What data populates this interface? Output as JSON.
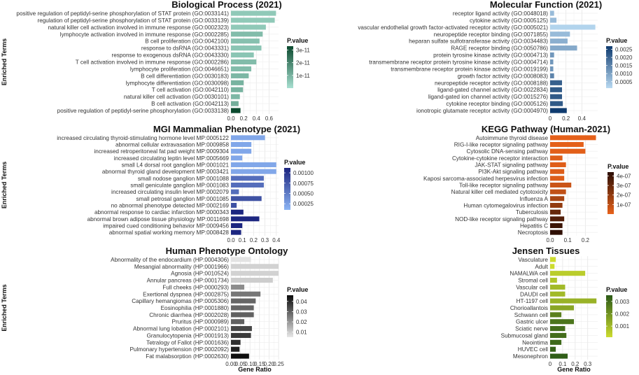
{
  "figure": {
    "shared_ylabel": "Enriched Terms",
    "shared_xlabel": "Gene Ratio",
    "legend_title": "P.value"
  },
  "chart_data": [
    {
      "type": "bar",
      "title": "Biological Process (2021)",
      "xlabel": "",
      "ylabel": "Enriched Terms",
      "xlim": [
        0,
        0.75
      ],
      "xticks": [
        0.0,
        0.2,
        0.4,
        0.6
      ],
      "xtick_labels": [
        "0.0",
        "0.2",
        "0.4",
        "0.6"
      ],
      "categories": [
        "positive regulation of peptidyl-serine phosphorylation of STAT protein (GO:0033141)",
        "regulation of peptidyl-serine phosphorylation of STAT protein (GO:0033139)",
        "natural killer cell activation involved in immune response (GO:0002323)",
        "lymphocyte activation involved in immune response (GO:0002285)",
        "B cell proliferation (GO:0042100)",
        "response to dsRNA (GO:0043331)",
        "response to exogenous dsRNA (GO:0043330)",
        "T cell activation involved in immune response (GO:0002286)",
        "lymphocyte proliferation (GO:0046651)",
        "B cell differentiation (GO:0030183)",
        "lymphocyte differentiation (GO:0030098)",
        "T cell activation (GO:0042110)",
        "natural killer cell activation (GO:0030101)",
        "B cell activation (GO:0042113)",
        "positive regulation of peptidyl-serine phosphorylation (GO:0033138)"
      ],
      "values": [
        0.71,
        0.69,
        0.55,
        0.5,
        0.45,
        0.48,
        0.36,
        0.4,
        0.32,
        0.28,
        0.2,
        0.19,
        0.14,
        0.12,
        0.15
      ],
      "pvalues": [
        5e-12,
        5e-12,
        5e-12,
        8e-12,
        7e-12,
        6e-12,
        6e-12,
        8e-12,
        8e-12,
        9e-12,
        1e-11,
        1e-11,
        9e-12,
        1.1e-11,
        3.3e-11
      ],
      "legend": {
        "title": "P.value",
        "min": 0,
        "max": 3.3e-11,
        "colors": [
          "#a8e0d1",
          "#0b4a2f"
        ],
        "ticks": [
          3e-11,
          2e-11,
          1e-11
        ],
        "tick_labels": [
          "3e-11",
          "2e-11",
          "1e-11"
        ]
      }
    },
    {
      "type": "bar",
      "title": "Molecular Function (2021)",
      "xlabel": "",
      "ylabel": "",
      "xlim": [
        0,
        0.6
      ],
      "xticks": [
        0.0,
        0.2,
        0.4
      ],
      "xtick_labels": [
        "0",
        "0.2",
        "0.4"
      ],
      "categories": [
        "receptor ligand activity (GO:0048018)",
        "cytokine activity (GO:0005125)",
        "vascular endothelial growth factor-activated receptor activity (GO:0005021)",
        "neuropeptide receptor binding (GO:0071855)",
        "heparan sulfate sulfotransferase activity (GO:0034483)",
        "RAGE receptor binding (GO:0050786)",
        "protein tyrosine kinase activity (GO:0004713)",
        "transmembrane receptor protein tyrosine kinase activity (GO:0004714)",
        "transmembrane receptor protein kinase activity (GO:0019199)",
        "growth factor activity (GO:0008083)",
        "neuropeptide receptor activity (GO:0008188)",
        "ligand-gated channel activity (GO:0022834)",
        "ligand-gated ion channel activity (GO:0015276)",
        "cytokine receptor binding (GO:0005126)",
        "ionotropic glutamate receptor activity (GO:0004970)"
      ],
      "values": [
        0.05,
        0.08,
        0.57,
        0.25,
        0.22,
        0.34,
        0.05,
        0.04,
        0.04,
        0.05,
        0.15,
        0.15,
        0.15,
        0.16,
        0.21
      ],
      "pvalues": [
        0.0006,
        0.0006,
        0.0002,
        0.0006,
        0.0008,
        0.0009,
        0.0012,
        0.0012,
        0.0012,
        0.0015,
        0.0021,
        0.0022,
        0.0022,
        0.0022,
        0.0027
      ],
      "legend": {
        "title": "P.value",
        "min": 0.0001,
        "max": 0.0027,
        "colors": [
          "#b9daf2",
          "#0f3b6f"
        ],
        "ticks": [
          0.0025,
          0.002,
          0.0015,
          0.001,
          0.0005
        ],
        "tick_labels": [
          "0.0025",
          "0.0020",
          "0.0015",
          "0.0010",
          "0.0005"
        ]
      }
    },
    {
      "type": "bar",
      "title": "MGI Mammalian Phenotype (2021)",
      "xlabel": "",
      "ylabel": "Enriched Terms",
      "xlim": [
        0,
        0.42
      ],
      "xticks": [
        0.0,
        0.1,
        0.2,
        0.3,
        0.4
      ],
      "xtick_labels": [
        "0.0",
        "0.1",
        "0.2",
        "0.3",
        "0.4"
      ],
      "categories": [
        "increased circulating thyroid-stimulating hormone level MP:0005122",
        "abnormal cellular extravasation MP:0009858",
        "increased retroperitoneal fat pad weight MP:0009304",
        "increased circulating leptin level MP:0005669",
        "small L4 dorsal root ganglion MP:0001021",
        "abnormal thyroid gland development MP:0003421",
        "small nodose ganglion MP:0001088",
        "small geniculate ganglion MP:0001083",
        "increased circulating insulin level MP:0002079",
        "small petrosal ganglion MP:0001085",
        "no abnormal phenotype detected MP:0002169",
        "abnormal response to cardiac infarction MP:0000343",
        "abnormal brown adipose tissue physiology MP:0011698",
        "impaired cued conditioning behavior MP:0009456",
        "abnormal spatial working memory MP:0008428"
      ],
      "values": [
        0.3,
        0.18,
        0.18,
        0.1,
        0.4,
        0.4,
        0.29,
        0.29,
        0.07,
        0.27,
        0.05,
        0.11,
        0.25,
        0.1,
        0.09
      ],
      "pvalues": [
        0.0002,
        0.0002,
        0.0002,
        0.0002,
        0.0002,
        0.0002,
        0.0006,
        0.0006,
        0.0006,
        0.0008,
        0.0008,
        0.0011,
        0.0011,
        0.0011,
        0.0011
      ],
      "legend": {
        "title": "P.value",
        "min": 0.0001,
        "max": 0.00112,
        "colors": [
          "#8cb5f5",
          "#1a237e"
        ],
        "ticks": [
          0.001,
          0.00075,
          0.0005,
          0.00025
        ],
        "tick_labels": [
          "0.00100",
          "0.00075",
          "0.00050",
          "0.00025"
        ]
      }
    },
    {
      "type": "bar",
      "title": "KEGG Pathway (Human-2021)",
      "xlabel": "",
      "ylabel": "",
      "xlim": [
        0,
        0.27
      ],
      "xticks": [
        0.0,
        0.1,
        0.2
      ],
      "xtick_labels": [
        "0.0",
        "0.1",
        "0.2"
      ],
      "categories": [
        "Autoimmune thyroid disease",
        "RIG-I-like receptor signaling pathway",
        "Cytosolic DNA-sensing pathway",
        "Cytokine-cytokine receptor interaction",
        "JAK-STAT signaling pathway",
        "PI3K-Akt signaling pathway",
        "Kaposi sarcoma-associated herpesvirus infection",
        "Toll-like receptor signaling pathway",
        "Natural killer cell mediated cytotoxicity",
        "Influenza A",
        "Human cytomegalovirus infection",
        "Tuberculosis",
        "NOD-like receptor signaling pathway",
        "Hepatitis C",
        "Necroptosis"
      ],
      "values": [
        0.26,
        0.19,
        0.2,
        0.07,
        0.09,
        0.08,
        0.08,
        0.12,
        0.09,
        0.08,
        0.07,
        0.06,
        0.08,
        0.07,
        0.07
      ],
      "pvalues": [
        8e-09,
        1e-08,
        1.5e-08,
        2e-08,
        2e-08,
        2.5e-08,
        2.5e-08,
        7e-08,
        9e-08,
        1.5e-07,
        2e-07,
        3e-07,
        3.5e-07,
        4e-07,
        4.3e-07
      ],
      "legend": {
        "title": "P.value",
        "min": 0,
        "max": 4.4e-07,
        "colors": [
          "#e8621a",
          "#2b0d04"
        ],
        "ticks": [
          4e-07,
          3e-07,
          2e-07,
          1e-07
        ],
        "tick_labels": [
          "4e-07",
          "3e-07",
          "2e-07",
          "1e-07"
        ]
      }
    },
    {
      "type": "bar",
      "title": "Human Phenotype Ontology",
      "xlabel": "Gene Ratio",
      "ylabel": "Enriched Terms",
      "xlim": [
        0,
        0.25
      ],
      "xticks": [
        0.0,
        0.05,
        0.1,
        0.15,
        0.2,
        0.25
      ],
      "xtick_labels": [
        "0.00",
        "0.05",
        "0.10",
        "0.15",
        "0.20",
        "0.25"
      ],
      "categories": [
        "Abnormality of the endocardium (HP:0004306)",
        "Mesangial abnormality (HP:0001966)",
        "Agnosia (HP:0010524)",
        "Annular pancreas (HP:0001734)",
        "Full cheeks (HP:0000293)",
        "Exertional dyspnea (HP:0002875)",
        "Capillary hemangiomas (HP:0005306)",
        "Eosinophilia (HP:0001880)",
        "Chronic diarrhea (HP:0002028)",
        "Pruritus (HP:0000989)",
        "Abnormal lung lobation (HP:0002101)",
        "Granulocytopenia (HP:0001913)",
        "Tetralogy of Fallot (HP:0001636)",
        "Pulmonary hypertension (HP:0002092)",
        "Fat malabsorption (HP:0002630)"
      ],
      "values": [
        0.105,
        0.25,
        0.25,
        0.22,
        0.07,
        0.155,
        0.13,
        0.12,
        0.12,
        0.07,
        0.11,
        0.105,
        0.05,
        0.045,
        0.095
      ],
      "pvalues": [
        0.006,
        0.009,
        0.009,
        0.01,
        0.022,
        0.026,
        0.029,
        0.029,
        0.03,
        0.03,
        0.035,
        0.037,
        0.039,
        0.042,
        0.045
      ],
      "legend": {
        "title": "P.value",
        "min": 0.005,
        "max": 0.046,
        "colors": [
          "#e8e8e8",
          "#0a0a0a"
        ],
        "ticks": [
          0.04,
          0.03,
          0.02,
          0.01
        ],
        "tick_labels": [
          "0.04",
          "0.03",
          "0.02",
          "0.01"
        ]
      }
    },
    {
      "type": "bar",
      "title": "Jensen Tissues",
      "xlabel": "Gene Ratio",
      "ylabel": "",
      "xlim": [
        0,
        0.38
      ],
      "xticks": [
        0.0,
        0.1,
        0.2,
        0.3
      ],
      "xtick_labels": [
        "0",
        "0.1",
        "0.2",
        "0.3"
      ],
      "categories": [
        "Vasculature",
        "Adult",
        "NAMALWA cell",
        "Stromal cell",
        "Vascular cell",
        "DAUDI cell",
        "HT-1197 cell",
        "Chorioallantois",
        "Schwann cell",
        "Gastric ulcer",
        "Sciatic nerve",
        "Submucosal gland",
        "Neointima",
        "HUVEC cell",
        "Mesonephron"
      ],
      "values": [
        0.045,
        0.035,
        0.28,
        0.055,
        0.12,
        0.12,
        0.37,
        0.19,
        0.09,
        0.19,
        0.12,
        0.13,
        0.09,
        0.045,
        0.14
      ],
      "pvalues": [
        0.0001,
        0.0001,
        0.0005,
        0.0007,
        0.001,
        0.001,
        0.0012,
        0.0015,
        0.0025,
        0.0028,
        0.003,
        0.003,
        0.0031,
        0.0033,
        0.0034
      ],
      "legend": {
        "title": "P.value",
        "min": 0.0001,
        "max": 0.0035,
        "colors": [
          "#cddc2f",
          "#2b5a17"
        ],
        "ticks": [
          0.003,
          0.002,
          0.001
        ],
        "tick_labels": [
          "0.003",
          "0.002",
          "0.001"
        ]
      }
    }
  ]
}
